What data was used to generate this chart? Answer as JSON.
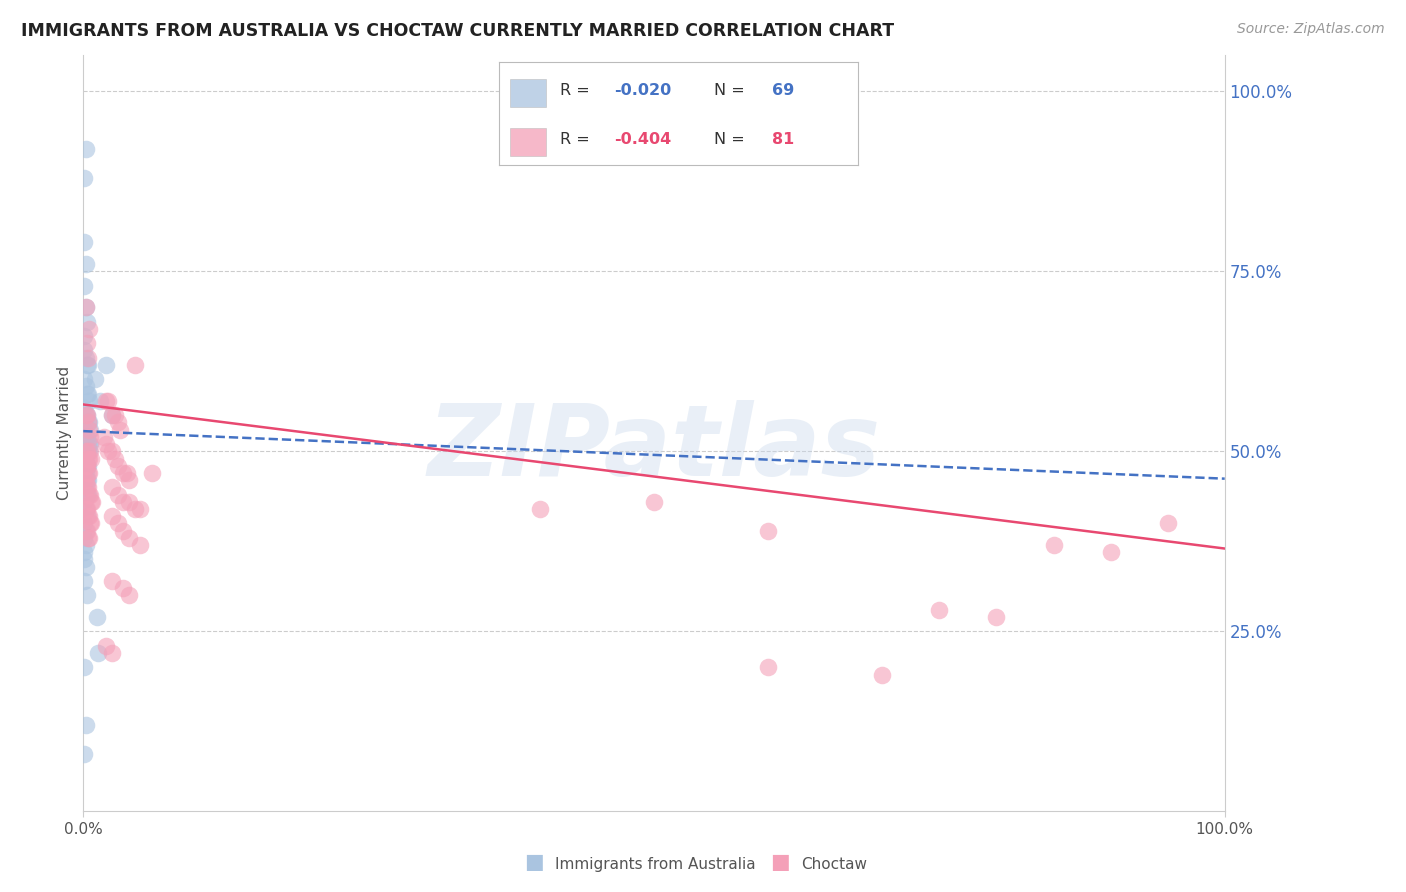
{
  "title": "IMMIGRANTS FROM AUSTRALIA VS CHOCTAW CURRENTLY MARRIED CORRELATION CHART",
  "source": "Source: ZipAtlas.com",
  "ylabel": "Currently Married",
  "watermark": "ZIPatlas",
  "right_ytick_labels": [
    "100.0%",
    "75.0%",
    "50.0%",
    "25.0%"
  ],
  "right_ytick_values": [
    1.0,
    0.75,
    0.5,
    0.25
  ],
  "xmin": 0.0,
  "xmax": 1.0,
  "ymin": 0.0,
  "ymax": 1.05,
  "blue_scatter": [
    [
      0.001,
      0.88
    ],
    [
      0.002,
      0.92
    ],
    [
      0.001,
      0.79
    ],
    [
      0.002,
      0.76
    ],
    [
      0.001,
      0.73
    ],
    [
      0.002,
      0.7
    ],
    [
      0.003,
      0.68
    ],
    [
      0.001,
      0.66
    ],
    [
      0.001,
      0.64
    ],
    [
      0.002,
      0.63
    ],
    [
      0.003,
      0.62
    ],
    [
      0.004,
      0.62
    ],
    [
      0.001,
      0.6
    ],
    [
      0.002,
      0.59
    ],
    [
      0.003,
      0.58
    ],
    [
      0.004,
      0.58
    ],
    [
      0.005,
      0.57
    ],
    [
      0.001,
      0.56
    ],
    [
      0.002,
      0.55
    ],
    [
      0.003,
      0.55
    ],
    [
      0.004,
      0.54
    ],
    [
      0.005,
      0.54
    ],
    [
      0.006,
      0.53
    ],
    [
      0.001,
      0.53
    ],
    [
      0.002,
      0.52
    ],
    [
      0.003,
      0.52
    ],
    [
      0.004,
      0.51
    ],
    [
      0.005,
      0.51
    ],
    [
      0.006,
      0.51
    ],
    [
      0.001,
      0.5
    ],
    [
      0.002,
      0.5
    ],
    [
      0.003,
      0.5
    ],
    [
      0.004,
      0.5
    ],
    [
      0.005,
      0.5
    ],
    [
      0.001,
      0.49
    ],
    [
      0.002,
      0.49
    ],
    [
      0.003,
      0.48
    ],
    [
      0.004,
      0.48
    ],
    [
      0.001,
      0.47
    ],
    [
      0.002,
      0.47
    ],
    [
      0.003,
      0.46
    ],
    [
      0.004,
      0.46
    ],
    [
      0.001,
      0.45
    ],
    [
      0.002,
      0.45
    ],
    [
      0.003,
      0.44
    ],
    [
      0.004,
      0.44
    ],
    [
      0.001,
      0.43
    ],
    [
      0.002,
      0.42
    ],
    [
      0.003,
      0.41
    ],
    [
      0.001,
      0.4
    ],
    [
      0.002,
      0.39
    ],
    [
      0.001,
      0.38
    ],
    [
      0.002,
      0.37
    ],
    [
      0.001,
      0.36
    ],
    [
      0.001,
      0.35
    ],
    [
      0.002,
      0.34
    ],
    [
      0.001,
      0.32
    ],
    [
      0.003,
      0.3
    ],
    [
      0.012,
      0.27
    ],
    [
      0.013,
      0.22
    ],
    [
      0.001,
      0.2
    ],
    [
      0.002,
      0.12
    ],
    [
      0.001,
      0.08
    ],
    [
      0.025,
      0.55
    ],
    [
      0.02,
      0.62
    ],
    [
      0.01,
      0.6
    ],
    [
      0.015,
      0.57
    ]
  ],
  "pink_scatter": [
    [
      0.002,
      0.7
    ],
    [
      0.003,
      0.65
    ],
    [
      0.004,
      0.63
    ],
    [
      0.005,
      0.67
    ],
    [
      0.002,
      0.55
    ],
    [
      0.003,
      0.55
    ],
    [
      0.004,
      0.54
    ],
    [
      0.005,
      0.53
    ],
    [
      0.006,
      0.52
    ],
    [
      0.002,
      0.5
    ],
    [
      0.003,
      0.5
    ],
    [
      0.004,
      0.49
    ],
    [
      0.005,
      0.49
    ],
    [
      0.006,
      0.5
    ],
    [
      0.007,
      0.49
    ],
    [
      0.002,
      0.48
    ],
    [
      0.003,
      0.48
    ],
    [
      0.004,
      0.47
    ],
    [
      0.005,
      0.47
    ],
    [
      0.001,
      0.46
    ],
    [
      0.002,
      0.46
    ],
    [
      0.003,
      0.45
    ],
    [
      0.004,
      0.45
    ],
    [
      0.005,
      0.44
    ],
    [
      0.006,
      0.44
    ],
    [
      0.007,
      0.43
    ],
    [
      0.008,
      0.43
    ],
    [
      0.002,
      0.42
    ],
    [
      0.003,
      0.42
    ],
    [
      0.004,
      0.41
    ],
    [
      0.005,
      0.41
    ],
    [
      0.006,
      0.4
    ],
    [
      0.007,
      0.4
    ],
    [
      0.003,
      0.39
    ],
    [
      0.004,
      0.38
    ],
    [
      0.005,
      0.38
    ],
    [
      0.02,
      0.57
    ],
    [
      0.022,
      0.57
    ],
    [
      0.025,
      0.55
    ],
    [
      0.028,
      0.55
    ],
    [
      0.03,
      0.54
    ],
    [
      0.032,
      0.53
    ],
    [
      0.018,
      0.52
    ],
    [
      0.02,
      0.51
    ],
    [
      0.022,
      0.5
    ],
    [
      0.025,
      0.5
    ],
    [
      0.028,
      0.49
    ],
    [
      0.03,
      0.48
    ],
    [
      0.035,
      0.47
    ],
    [
      0.038,
      0.47
    ],
    [
      0.04,
      0.46
    ],
    [
      0.025,
      0.45
    ],
    [
      0.03,
      0.44
    ],
    [
      0.035,
      0.43
    ],
    [
      0.04,
      0.43
    ],
    [
      0.045,
      0.42
    ],
    [
      0.05,
      0.42
    ],
    [
      0.025,
      0.41
    ],
    [
      0.03,
      0.4
    ],
    [
      0.035,
      0.39
    ],
    [
      0.04,
      0.38
    ],
    [
      0.05,
      0.37
    ],
    [
      0.025,
      0.32
    ],
    [
      0.035,
      0.31
    ],
    [
      0.04,
      0.3
    ],
    [
      0.02,
      0.23
    ],
    [
      0.025,
      0.22
    ],
    [
      0.045,
      0.62
    ],
    [
      0.06,
      0.47
    ],
    [
      0.75,
      0.28
    ],
    [
      0.8,
      0.27
    ],
    [
      0.6,
      0.2
    ],
    [
      0.7,
      0.19
    ],
    [
      0.85,
      0.37
    ],
    [
      0.9,
      0.36
    ],
    [
      0.5,
      0.43
    ],
    [
      0.95,
      0.4
    ],
    [
      0.4,
      0.42
    ],
    [
      0.6,
      0.39
    ]
  ],
  "blue_line": {
    "x0": 0.0,
    "y0": 0.528,
    "x1": 1.0,
    "y1": 0.462
  },
  "pink_line": {
    "x0": 0.0,
    "y0": 0.565,
    "x1": 1.0,
    "y1": 0.365
  },
  "blue_color": "#aac4e0",
  "pink_color": "#f4a0b8",
  "blue_line_color": "#4472c4",
  "pink_line_color": "#e84870",
  "grid_color": "#cccccc",
  "right_axis_color": "#4472c4",
  "title_color": "#222222",
  "source_color": "#999999",
  "watermark_color": "#c8d8ec",
  "background_color": "#ffffff",
  "legend_rows": [
    {
      "patch_color": "#aac4e0",
      "r_val": "-0.020",
      "n_val": "69",
      "val_color": "#4472c4"
    },
    {
      "patch_color": "#f4a0b8",
      "r_val": "-0.404",
      "n_val": "81",
      "val_color": "#e84870"
    }
  ]
}
